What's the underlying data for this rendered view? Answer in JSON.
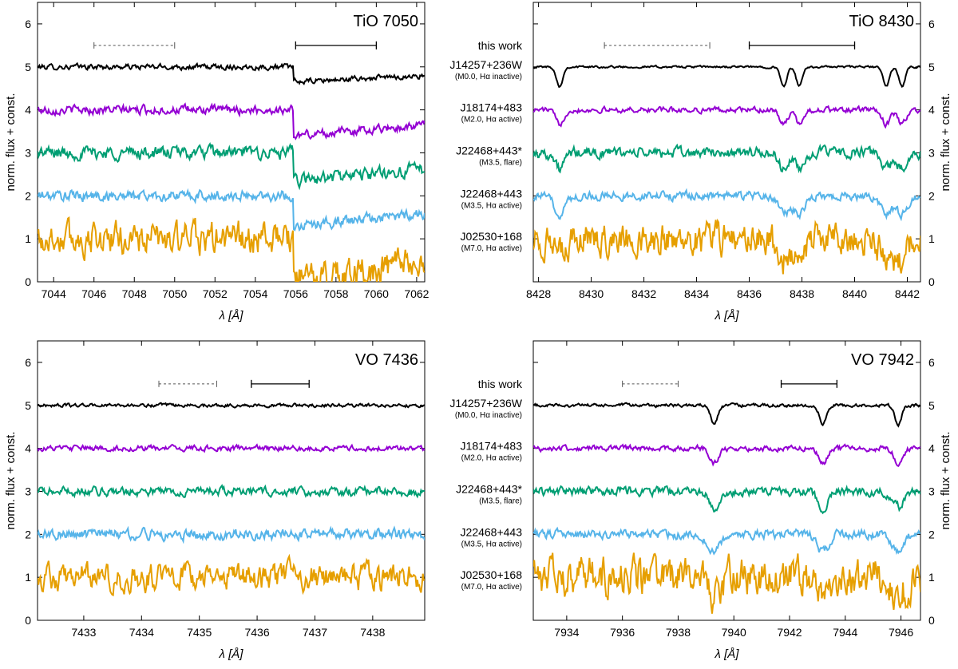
{
  "figure": {
    "left_column_label": "this work",
    "star_labels": [
      {
        "name": "J14257+236W",
        "info": "(M0.0, Hα inactive)",
        "color": "#000000",
        "offset": 5
      },
      {
        "name": "J18174+483",
        "info": "(M2.0, Hα active)",
        "color": "#9400d3",
        "offset": 4
      },
      {
        "name": "J22468+443*",
        "info": "(M3.5, flare)",
        "color": "#009e73",
        "offset": 3
      },
      {
        "name": "J22468+443",
        "info": "(M3.5, Hα active)",
        "color": "#56b4e9",
        "offset": 2
      },
      {
        "name": "J02530+168",
        "info": "(M7.0, Hα active)",
        "color": "#e69f00",
        "offset": 1
      }
    ]
  },
  "chart_data": [
    {
      "type": "line",
      "title": "TiO 7050",
      "xlabel": "λ [Å]",
      "ylabel": "norm. flux + const.",
      "xlim": [
        7043.2,
        7062.4
      ],
      "ylim": [
        0,
        6.5
      ],
      "xticks": [
        7044,
        7046,
        7048,
        7050,
        7052,
        7054,
        7056,
        7058,
        7060,
        7062
      ],
      "yticks": [
        0,
        1,
        2,
        3,
        4,
        5,
        6
      ],
      "bandhead": 7055.9,
      "continuum_bar": [
        7046.0,
        7050.0
      ],
      "feature_bar": [
        7056.0,
        7060.0
      ],
      "series_amplitudes": [
        0.05,
        0.08,
        0.12,
        0.1,
        0.3
      ],
      "band_drops": [
        0.35,
        0.6,
        0.65,
        0.7,
        1.0
      ]
    },
    {
      "type": "line",
      "title": "TiO 8430",
      "xlabel": "λ [Å]",
      "ylabel": "norm. flux + const.",
      "xlim": [
        8427.8,
        8442.5
      ],
      "ylim": [
        0,
        6.5
      ],
      "xticks": [
        8428,
        8430,
        8432,
        8434,
        8436,
        8438,
        8440,
        8442
      ],
      "yticks": [
        0,
        1,
        2,
        3,
        4,
        5,
        6
      ],
      "absorption_lines": [
        8428.8,
        8437.3,
        8437.9,
        8441.2,
        8441.8
      ],
      "continuum_bar": [
        8430.5,
        8434.5
      ],
      "feature_bar": [
        8436.0,
        8440.0
      ],
      "series_amplitudes": [
        0.02,
        0.05,
        0.1,
        0.08,
        0.3
      ]
    },
    {
      "type": "line",
      "title": "VO 7436",
      "xlabel": "λ [Å]",
      "ylabel": "norm. flux + const.",
      "xlim": [
        7432.2,
        7438.9
      ],
      "ylim": [
        0,
        6.5
      ],
      "xticks": [
        7433,
        7434,
        7435,
        7436,
        7437,
        7438
      ],
      "yticks": [
        0,
        1,
        2,
        3,
        4,
        5,
        6
      ],
      "continuum_bar": [
        7434.3,
        7435.3
      ],
      "feature_bar": [
        7435.9,
        7436.9
      ],
      "series_amplitudes": [
        0.03,
        0.05,
        0.08,
        0.1,
        0.25
      ]
    },
    {
      "type": "line",
      "title": "VO 7942",
      "xlabel": "λ [Å]",
      "ylabel": "norm. flux + const.",
      "xlim": [
        7932.8,
        7946.7
      ],
      "ylim": [
        0,
        6.5
      ],
      "xticks": [
        7934,
        7936,
        7938,
        7940,
        7942,
        7944,
        7946
      ],
      "yticks": [
        0,
        1,
        2,
        3,
        4,
        5,
        6
      ],
      "absorption_lines": [
        7939.3,
        7943.2,
        7945.9
      ],
      "continuum_bar": [
        7936.0,
        7938.0
      ],
      "feature_bar": [
        7941.7,
        7943.7
      ],
      "series_amplitudes": [
        0.03,
        0.05,
        0.08,
        0.08,
        0.35
      ]
    }
  ]
}
